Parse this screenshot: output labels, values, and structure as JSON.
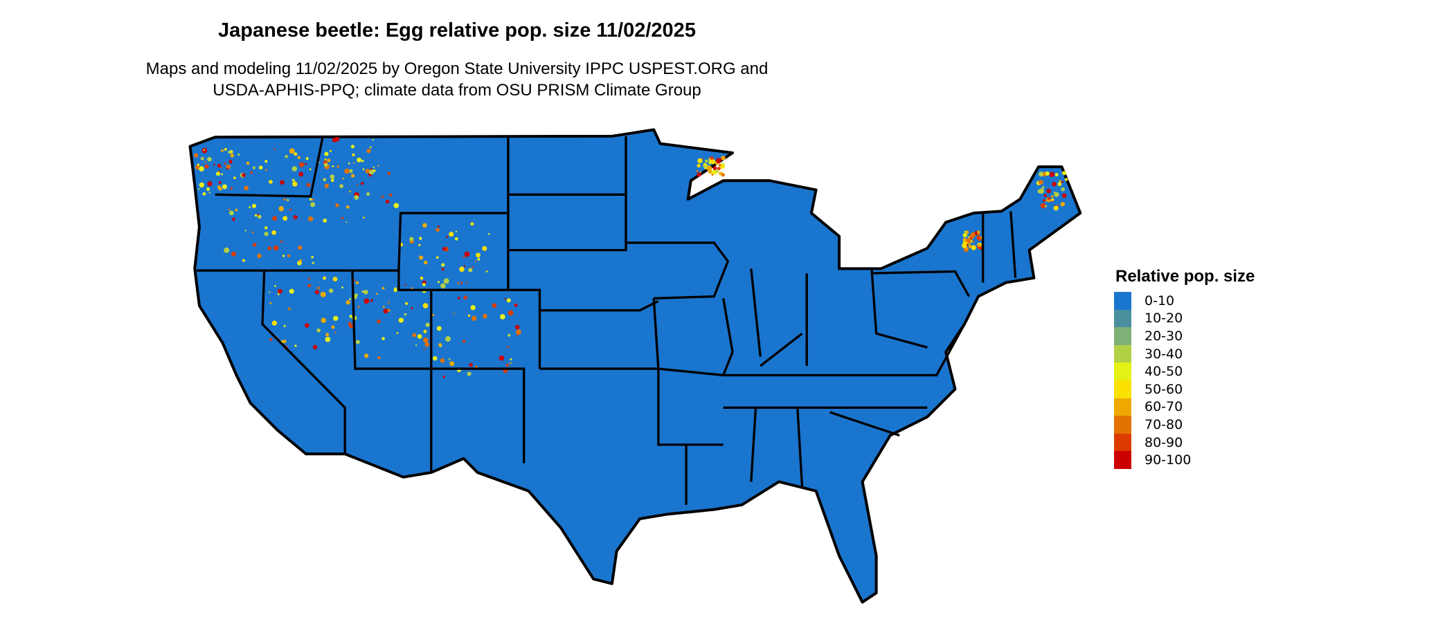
{
  "title": "Japanese beetle: Egg relative pop. size 11/02/2025",
  "subtitle_line1": "Maps and modeling 11/02/2025 by Oregon State University IPPC USPEST.ORG and",
  "subtitle_line2": "USDA-APHIS-PPQ; climate data from OSU PRISM Climate Group",
  "map": {
    "region": "Contiguous United States",
    "background_fill": "#1a75cf",
    "border_color": "#000000"
  },
  "legend": {
    "title": "Relative pop. size",
    "items": [
      {
        "label": "0-10",
        "color": "#1a75cf"
      },
      {
        "label": "10-20",
        "color": "#4a8f9e"
      },
      {
        "label": "20-30",
        "color": "#7fb075"
      },
      {
        "label": "30-40",
        "color": "#b2d045"
      },
      {
        "label": "40-50",
        "color": "#e5f016"
      },
      {
        "label": "50-60",
        "color": "#fae100"
      },
      {
        "label": "60-70",
        "color": "#eea800"
      },
      {
        "label": "70-80",
        "color": "#e47200"
      },
      {
        "label": "80-90",
        "color": "#dc3c00"
      },
      {
        "label": "90-100",
        "color": "#cc0000"
      }
    ]
  }
}
